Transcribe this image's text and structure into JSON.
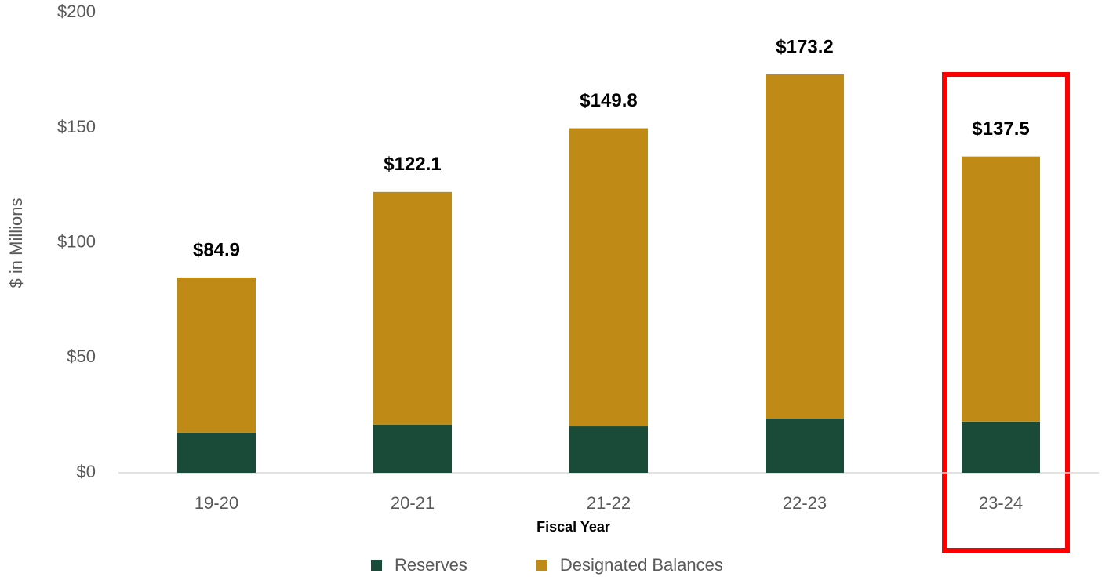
{
  "chart_data": {
    "type": "stacked_bar",
    "y_label": "$ in Millions",
    "x_label": "Fiscal Year",
    "categories": [
      "19-20",
      "20-21",
      "21-22",
      "22-23",
      "23-24"
    ],
    "series": [
      {
        "name": "Reserves",
        "color": "#1a4a38",
        "values": [
          17.4,
          20.8,
          20.1,
          23.5,
          22.2
        ]
      },
      {
        "name": "Designated Balances",
        "color": "#bf8b16",
        "values": [
          67.5,
          101.3,
          129.7,
          149.7,
          115.3
        ]
      }
    ],
    "totals": [
      84.9,
      122.1,
      149.8,
      173.2,
      137.5
    ],
    "total_labels": [
      "$84.9",
      "$122.1",
      "$149.8",
      "$173.2",
      "$137.5"
    ],
    "ylim": [
      0,
      200
    ],
    "yticks": [
      {
        "value": 0,
        "label": "$0"
      },
      {
        "value": 50,
        "label": "$50"
      },
      {
        "value": 100,
        "label": "$100"
      },
      {
        "value": 150,
        "label": "$150"
      },
      {
        "value": 200,
        "label": "$200"
      }
    ],
    "grid": false,
    "legend": "bottom"
  }
}
